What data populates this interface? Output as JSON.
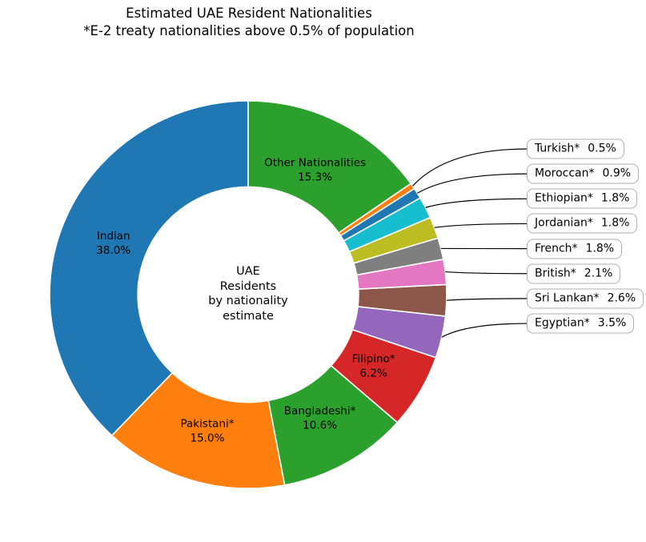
{
  "chart_data": {
    "type": "pie",
    "variant": "donut",
    "title": "Estimated UAE Resident Nationalities",
    "subtitle": "*E-2 treaty nationalities above 0.5% of population",
    "center_label_lines": [
      "UAE",
      "Residents",
      "by nationality",
      "estimate"
    ],
    "start_angle_deg": 90,
    "direction": "counterclockwise",
    "legend_position": "none",
    "background_color": "#ffffff",
    "wedge_edge_color": "#ffffff",
    "callout_border_color": "#afafaf",
    "slices": [
      {
        "label": "Indian",
        "pct": 38.0,
        "color": "#1f77b4",
        "label_style": "inside"
      },
      {
        "label": "Pakistani*",
        "pct": 15.0,
        "color": "#ff7f0e",
        "label_style": "inside"
      },
      {
        "label": "Bangladeshi*",
        "pct": 10.6,
        "color": "#2ca02c",
        "label_style": "inside"
      },
      {
        "label": "Filipino*",
        "pct": 6.2,
        "color": "#d62728",
        "label_style": "inside"
      },
      {
        "label": "Egyptian*",
        "pct": 3.5,
        "color": "#9467bd",
        "label_style": "callout"
      },
      {
        "label": "Sri Lankan*",
        "pct": 2.6,
        "color": "#8c564b",
        "label_style": "callout"
      },
      {
        "label": "British*",
        "pct": 2.1,
        "color": "#e377c2",
        "label_style": "callout"
      },
      {
        "label": "French*",
        "pct": 1.8,
        "color": "#7f7f7f",
        "label_style": "callout"
      },
      {
        "label": "Jordanian*",
        "pct": 1.8,
        "color": "#bcbd22",
        "label_style": "callout"
      },
      {
        "label": "Ethiopian*",
        "pct": 1.8,
        "color": "#17becf",
        "label_style": "callout"
      },
      {
        "label": "Moroccan*",
        "pct": 0.9,
        "color": "#1f77b4",
        "label_style": "callout"
      },
      {
        "label": "Turkish*",
        "pct": 0.5,
        "color": "#ff7f0e",
        "label_style": "callout"
      },
      {
        "label": "Other Nationalities",
        "pct": 15.3,
        "color": "#2ca02c",
        "label_style": "inside"
      }
    ]
  }
}
